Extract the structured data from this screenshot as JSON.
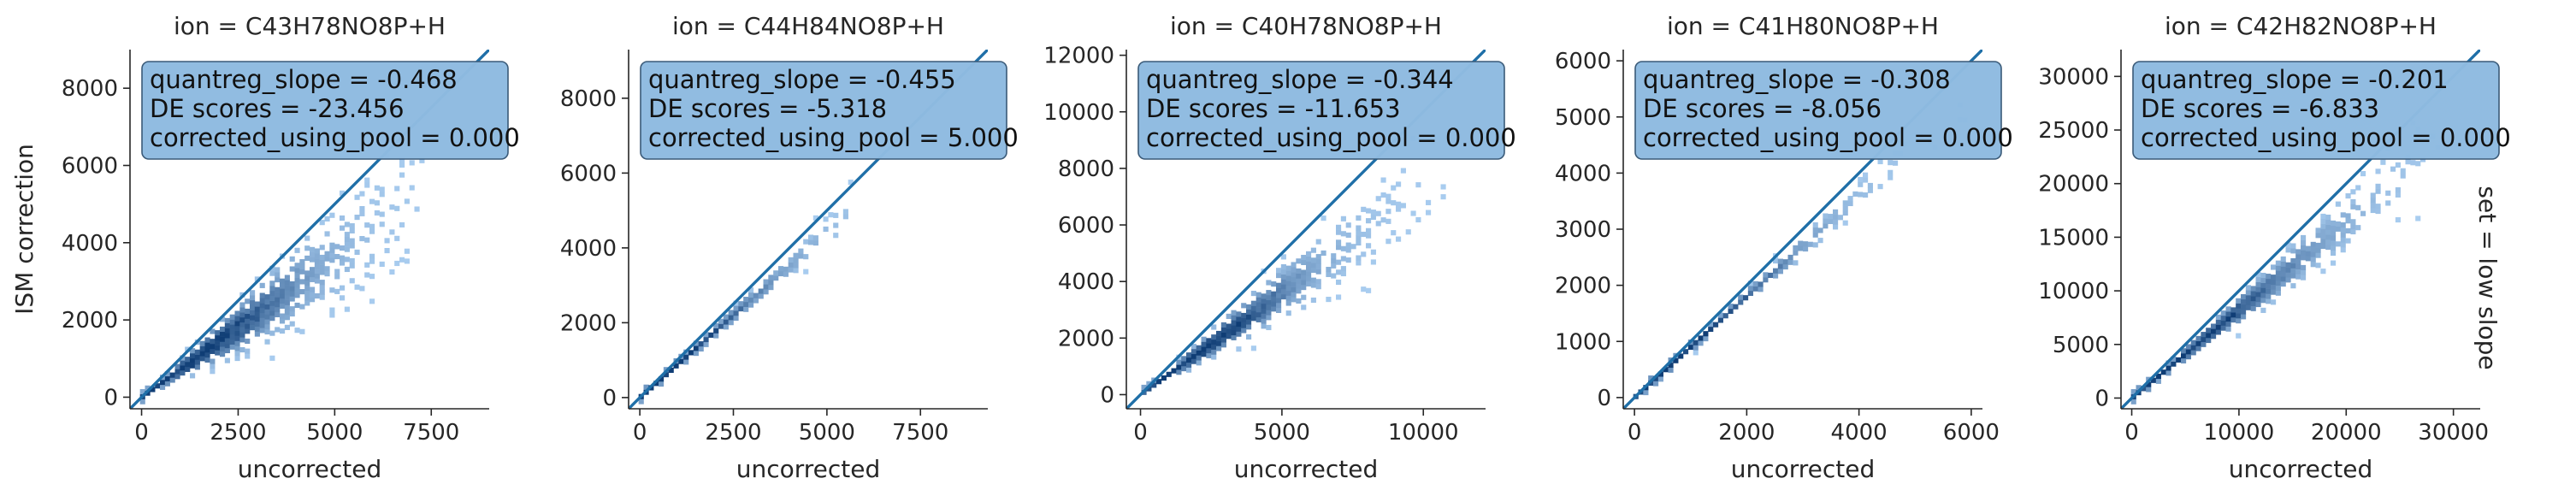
{
  "figure": {
    "row_label": "set = low slope",
    "colors": {
      "identity_line": "#1f6fa8",
      "hist_light": "#a9cdf0",
      "hist_dark": "#0f3d75",
      "box_fill": "#8fbbe0",
      "box_edge": "#3a5a78",
      "axis": "#262626"
    }
  },
  "chart_data": [
    {
      "type": "heatmap",
      "title": "ion = C43H78NO8P+H",
      "xlabel": "uncorrected",
      "ylabel": "ISM correction",
      "xlim": [
        -300,
        9000
      ],
      "ylim": [
        -300,
        9000
      ],
      "xticks": [
        0,
        2500,
        5000,
        7500
      ],
      "yticks": [
        0,
        2000,
        4000,
        6000,
        8000
      ],
      "identity_line": true,
      "annotation": [
        "quantreg_slope = -0.468",
        "DE scores = -23.456",
        "corrected_using_pool = 0.000"
      ],
      "density": {
        "slope": 0.72,
        "spread": 0.25,
        "xmax": 7700,
        "sparse_after": 3800,
        "core": 1300
      }
    },
    {
      "type": "heatmap",
      "title": "ion = C44H84NO8P+H",
      "xlabel": "uncorrected",
      "ylabel": "",
      "xlim": [
        -300,
        9300
      ],
      "ylim": [
        -300,
        9300
      ],
      "xticks": [
        0,
        2500,
        5000,
        7500
      ],
      "yticks": [
        0,
        2000,
        4000,
        6000,
        8000
      ],
      "identity_line": true,
      "annotation": [
        "quantreg_slope = -0.455",
        "DE scores = -5.318",
        "corrected_using_pool = 5.000"
      ],
      "density": {
        "slope": 0.88,
        "spread": 0.08,
        "xmax": 6300,
        "sparse_after": 4200,
        "core": 500
      }
    },
    {
      "type": "heatmap",
      "title": "ion = C40H78NO8P+H",
      "xlabel": "uncorrected",
      "ylabel": "",
      "xlim": [
        -500,
        12200
      ],
      "ylim": [
        -500,
        12200
      ],
      "xticks": [
        0,
        5000,
        10000
      ],
      "yticks": [
        0,
        2000,
        4000,
        6000,
        8000,
        10000,
        12000
      ],
      "identity_line": true,
      "annotation": [
        "quantreg_slope = -0.344",
        "DE scores = -11.653",
        "corrected_using_pool = 0.000"
      ],
      "density": {
        "slope": 0.72,
        "spread": 0.18,
        "xmax": 11500,
        "sparse_after": 5000,
        "core": 2000
      }
    },
    {
      "type": "heatmap",
      "title": "ion = C41H80NO8P+H",
      "xlabel": "uncorrected",
      "ylabel": "",
      "xlim": [
        -200,
        6200
      ],
      "ylim": [
        -200,
        6200
      ],
      "xticks": [
        0,
        2000,
        4000,
        6000
      ],
      "yticks": [
        0,
        1000,
        2000,
        3000,
        4000,
        5000,
        6000
      ],
      "identity_line": true,
      "annotation": [
        "quantreg_slope = -0.308",
        "DE scores = -8.056",
        "corrected_using_pool = 0.000"
      ],
      "density": {
        "slope": 0.9,
        "spread": 0.07,
        "xmax": 5900,
        "sparse_after": 3000,
        "core": 700
      }
    },
    {
      "type": "heatmap",
      "title": "ion = C42H82NO8P+H",
      "xlabel": "uncorrected",
      "ylabel": "",
      "xlim": [
        -1000,
        32500
      ],
      "ylim": [
        -1000,
        32500
      ],
      "xticks": [
        0,
        10000,
        20000,
        30000
      ],
      "yticks": [
        0,
        5000,
        10000,
        15000,
        20000,
        25000,
        30000
      ],
      "identity_line": true,
      "annotation": [
        "quantreg_slope = -0.201",
        "DE scores = -6.833",
        "corrected_using_pool = 0.000"
      ],
      "density": {
        "slope": 0.82,
        "spread": 0.13,
        "xmax": 30000,
        "sparse_after": 17000,
        "core": 4000
      }
    }
  ]
}
